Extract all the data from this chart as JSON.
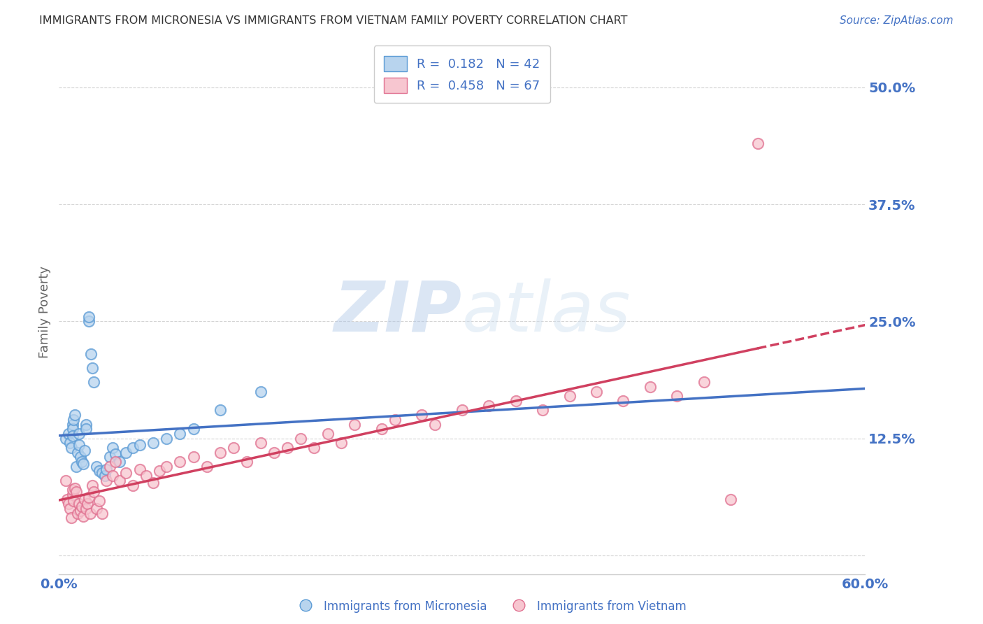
{
  "title": "IMMIGRANTS FROM MICRONESIA VS IMMIGRANTS FROM VIETNAM FAMILY POVERTY CORRELATION CHART",
  "source": "Source: ZipAtlas.com",
  "ylabel": "Family Poverty",
  "xlim": [
    0.0,
    0.6
  ],
  "ylim": [
    -0.02,
    0.54
  ],
  "yticks": [
    0.0,
    0.125,
    0.25,
    0.375,
    0.5
  ],
  "ytick_labels": [
    "",
    "12.5%",
    "25.0%",
    "37.5%",
    "50.0%"
  ],
  "xticks": [
    0.0,
    0.1,
    0.2,
    0.3,
    0.4,
    0.5,
    0.6
  ],
  "xtick_labels": [
    "0.0%",
    "",
    "",
    "",
    "",
    "",
    "60.0%"
  ],
  "legend_r1": "R =  0.182   N = 42",
  "legend_r2": "R =  0.458   N = 67",
  "color_micronesia_fill": "#b8d4ee",
  "color_micronesia_edge": "#5b9bd5",
  "color_vietnam_fill": "#f7c6d0",
  "color_vietnam_edge": "#e07090",
  "color_line_micronesia": "#4472c4",
  "color_line_vietnam": "#d04060",
  "color_axis_labels": "#4472c4",
  "color_grid": "#d0d0d0",
  "watermark": "ZIPatlas",
  "background_color": "#ffffff",
  "micronesia_x": [
    0.005,
    0.007,
    0.008,
    0.009,
    0.01,
    0.01,
    0.01,
    0.011,
    0.012,
    0.013,
    0.014,
    0.015,
    0.015,
    0.016,
    0.017,
    0.018,
    0.019,
    0.02,
    0.02,
    0.022,
    0.022,
    0.024,
    0.025,
    0.026,
    0.028,
    0.03,
    0.032,
    0.034,
    0.035,
    0.038,
    0.04,
    0.042,
    0.045,
    0.05,
    0.055,
    0.06,
    0.07,
    0.08,
    0.09,
    0.1,
    0.12,
    0.15
  ],
  "micronesia_y": [
    0.125,
    0.13,
    0.12,
    0.115,
    0.14,
    0.135,
    0.128,
    0.145,
    0.15,
    0.095,
    0.11,
    0.13,
    0.118,
    0.105,
    0.1,
    0.098,
    0.112,
    0.14,
    0.135,
    0.25,
    0.255,
    0.215,
    0.2,
    0.185,
    0.095,
    0.09,
    0.088,
    0.085,
    0.092,
    0.105,
    0.115,
    0.108,
    0.1,
    0.11,
    0.115,
    0.118,
    0.12,
    0.125,
    0.13,
    0.135,
    0.155,
    0.175
  ],
  "vietnam_x": [
    0.005,
    0.006,
    0.007,
    0.008,
    0.009,
    0.01,
    0.01,
    0.011,
    0.012,
    0.013,
    0.014,
    0.015,
    0.016,
    0.017,
    0.018,
    0.019,
    0.02,
    0.021,
    0.022,
    0.023,
    0.025,
    0.026,
    0.028,
    0.03,
    0.032,
    0.035,
    0.038,
    0.04,
    0.042,
    0.045,
    0.05,
    0.055,
    0.06,
    0.065,
    0.07,
    0.075,
    0.08,
    0.09,
    0.1,
    0.11,
    0.12,
    0.13,
    0.14,
    0.15,
    0.16,
    0.17,
    0.18,
    0.19,
    0.2,
    0.21,
    0.22,
    0.24,
    0.25,
    0.27,
    0.28,
    0.3,
    0.32,
    0.34,
    0.36,
    0.38,
    0.4,
    0.42,
    0.44,
    0.46,
    0.48,
    0.5,
    0.52
  ],
  "vietnam_y": [
    0.08,
    0.06,
    0.055,
    0.05,
    0.04,
    0.065,
    0.07,
    0.058,
    0.072,
    0.068,
    0.045,
    0.055,
    0.048,
    0.052,
    0.042,
    0.06,
    0.05,
    0.055,
    0.062,
    0.045,
    0.075,
    0.068,
    0.05,
    0.058,
    0.045,
    0.08,
    0.095,
    0.085,
    0.1,
    0.08,
    0.088,
    0.075,
    0.092,
    0.085,
    0.078,
    0.09,
    0.095,
    0.1,
    0.105,
    0.095,
    0.11,
    0.115,
    0.1,
    0.12,
    0.11,
    0.115,
    0.125,
    0.115,
    0.13,
    0.12,
    0.14,
    0.135,
    0.145,
    0.15,
    0.14,
    0.155,
    0.16,
    0.165,
    0.155,
    0.17,
    0.175,
    0.165,
    0.18,
    0.17,
    0.185,
    0.06,
    0.44
  ]
}
